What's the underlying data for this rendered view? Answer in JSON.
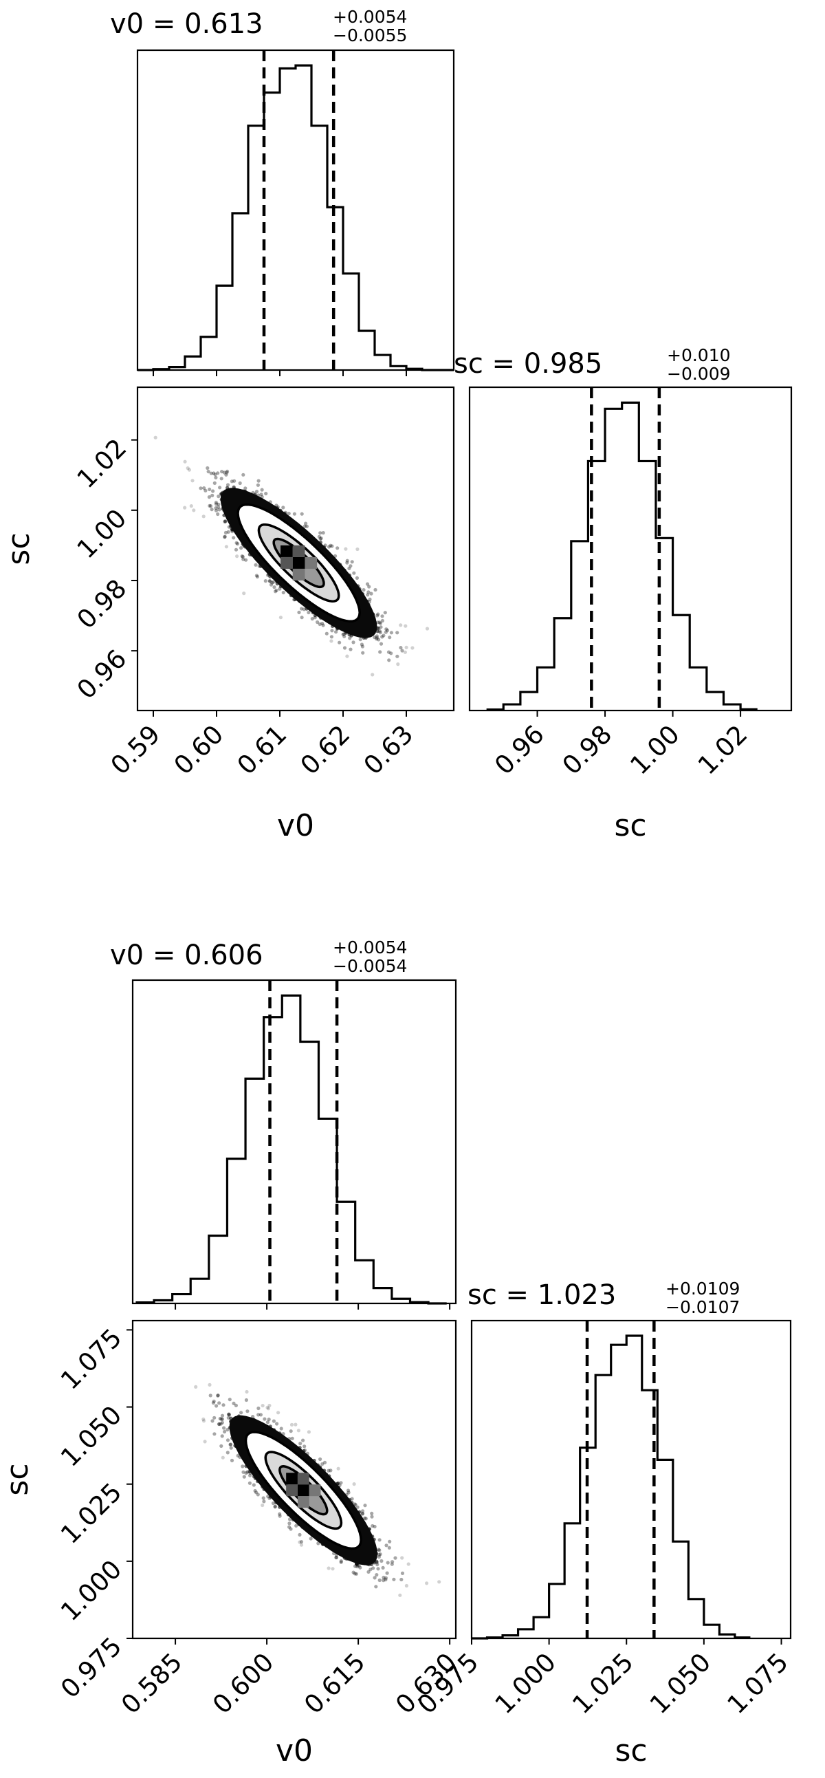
{
  "chart_data": [
    {
      "type": "corner",
      "params": [
        "v0",
        "sc"
      ],
      "hist_v0": {
        "title_value": "v0 = 0.613",
        "err_plus": "+0.0054",
        "err_minus": "−0.0055",
        "xlim": [
          0.5875,
          0.6375
        ],
        "bin_edges": [
          0.5875,
          0.59,
          0.5925,
          0.595,
          0.5975,
          0.6,
          0.6025,
          0.605,
          0.6075,
          0.61,
          0.6125,
          0.615,
          0.6175,
          0.62,
          0.6225,
          0.625,
          0.6275,
          0.63,
          0.6325,
          0.635,
          0.6375
        ],
        "counts": [
          0,
          0.3,
          1,
          4.5,
          11,
          28,
          52,
          81,
          92,
          100,
          101,
          81,
          54,
          32,
          13,
          5,
          1.3,
          0.4,
          0,
          0
        ],
        "quantiles": [
          0.6075,
          0.6185
        ]
      },
      "hist_sc": {
        "title_value": "sc = 0.985",
        "err_plus": "+0.010",
        "err_minus": "−0.009",
        "xlim": [
          0.94,
          1.035
        ],
        "bin_edges": [
          0.945,
          0.95,
          0.955,
          0.96,
          0.965,
          0.97,
          0.975,
          0.98,
          0.985,
          0.99,
          0.995,
          1.0,
          1.005,
          1.01,
          1.015,
          1.02,
          1.025
        ],
        "counts": [
          0.3,
          2,
          6,
          14,
          30,
          55,
          81,
          98,
          100,
          81,
          56,
          31,
          14,
          6,
          2,
          0.4
        ],
        "quantiles": [
          0.976,
          0.996
        ]
      },
      "scatter": {
        "xlim": [
          0.5875,
          0.6375
        ],
        "ylim": [
          0.943,
          1.035
        ],
        "center": [
          0.613,
          0.985
        ],
        "sigma": [
          0.0055,
          0.0095
        ],
        "rho": -0.85
      },
      "axes": {
        "v0_ticks": [
          "0.59",
          "0.60",
          "0.61",
          "0.62",
          "0.63"
        ],
        "v0_tick_values": [
          0.59,
          0.6,
          0.61,
          0.62,
          0.63
        ],
        "sc_ticks": [
          "0.96",
          "0.98",
          "1.00",
          "1.02"
        ],
        "sc_tick_values": [
          0.96,
          0.98,
          1.0,
          1.02
        ],
        "xlabel_v0": "v0",
        "xlabel_sc": "sc",
        "ylabel_sc": "sc"
      }
    },
    {
      "type": "corner",
      "params": [
        "v0",
        "sc"
      ],
      "hist_v0": {
        "title_value": "v0 = 0.606",
        "err_plus": "+0.0054",
        "err_minus": "−0.0054",
        "xlim": [
          0.578,
          0.631
        ],
        "bin_edges": [
          0.5785,
          0.5815,
          0.5845,
          0.5875,
          0.5905,
          0.5935,
          0.5965,
          0.5995,
          0.6025,
          0.6055,
          0.6085,
          0.6115,
          0.6145,
          0.6175,
          0.6205,
          0.6235,
          0.6265,
          0.6295
        ],
        "counts": [
          0.3,
          1,
          3,
          8,
          22,
          47,
          73,
          93,
          100,
          85,
          60,
          33,
          14,
          5,
          1.5,
          0.4,
          0
        ],
        "quantiles": [
          0.6005,
          0.6115
        ]
      },
      "hist_sc": {
        "title_value": "sc = 1.023",
        "err_plus": "+0.0109",
        "err_minus": "−0.0107",
        "xlim": [
          0.975,
          1.078
        ],
        "bin_edges": [
          0.975,
          0.98,
          0.985,
          0.99,
          0.995,
          1.0,
          1.005,
          1.01,
          1.015,
          1.02,
          1.025,
          1.03,
          1.035,
          1.04,
          1.045,
          1.05,
          1.055,
          1.06,
          1.065
        ],
        "counts": [
          0,
          0.3,
          1,
          3,
          7,
          18,
          38,
          63,
          87,
          97,
          100,
          82,
          59,
          32,
          13,
          4.5,
          1.3,
          0.3
        ],
        "quantiles": [
          1.0123,
          1.0339
        ]
      },
      "scatter": {
        "xlim": [
          0.578,
          0.631
        ],
        "ylim": [
          0.975,
          1.078
        ],
        "center": [
          0.606,
          1.023
        ],
        "sigma": [
          0.0054,
          0.0108
        ],
        "rho": -0.85
      },
      "axes": {
        "v0_ticks": [
          "0.585",
          "0.600",
          "0.615",
          "0.630"
        ],
        "v0_tick_values": [
          0.585,
          0.6,
          0.615,
          0.63
        ],
        "sc_ticks": [
          "0.975",
          "1.000",
          "1.025",
          "1.050",
          "1.075"
        ],
        "sc_tick_values": [
          0.975,
          1.0,
          1.025,
          1.05,
          1.075
        ],
        "xlabel_v0": "v0",
        "xlabel_sc": "sc",
        "ylabel_sc": "sc"
      }
    }
  ]
}
